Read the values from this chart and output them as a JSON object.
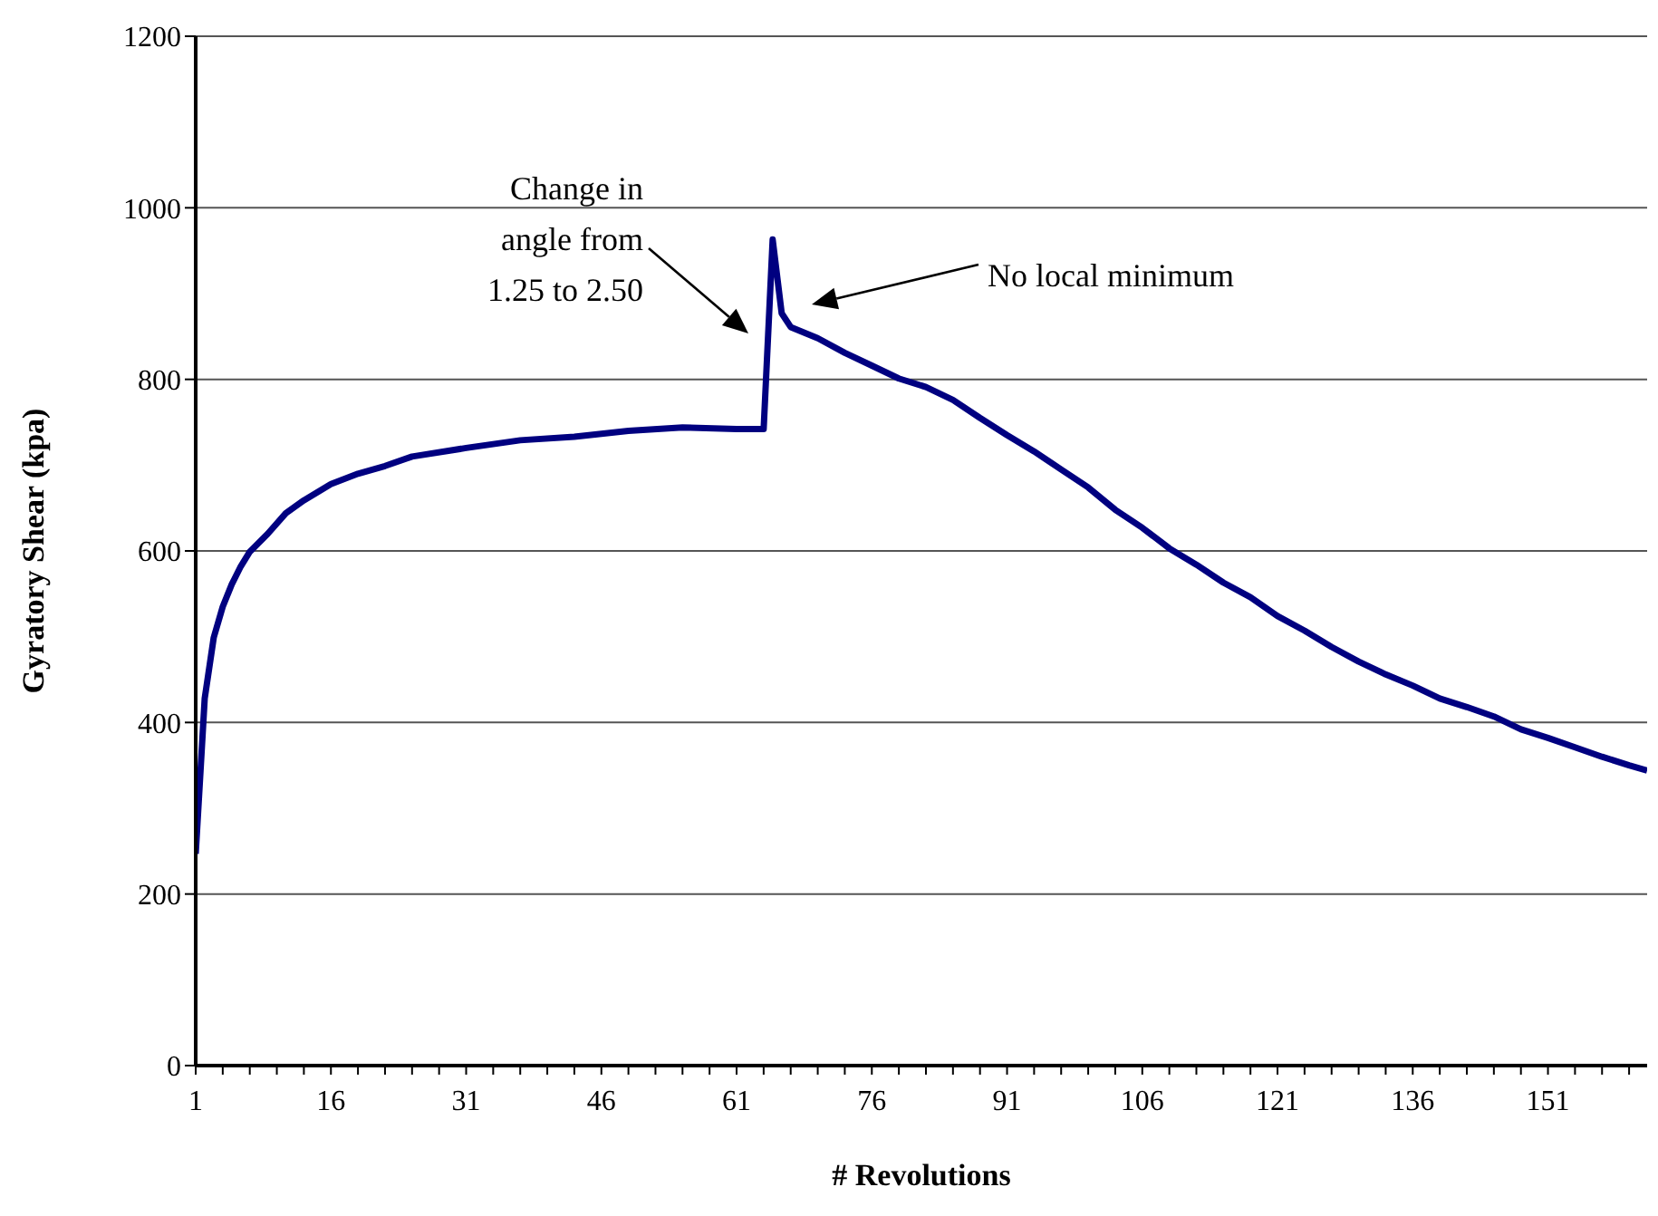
{
  "chart_data": {
    "type": "line",
    "xlabel": "# Revolutions",
    "ylabel": "Gyratory Shear (kpa)",
    "x": [
      1,
      2,
      3,
      4,
      5,
      6,
      7,
      9,
      11,
      13,
      16,
      19,
      22,
      25,
      31,
      37,
      43,
      49,
      55,
      61,
      64,
      65,
      66,
      67,
      70,
      73,
      76,
      79,
      82,
      85,
      88,
      91,
      94,
      97,
      100,
      103,
      106,
      109,
      112,
      115,
      118,
      121,
      124,
      127,
      130,
      133,
      136,
      139,
      142,
      145,
      148,
      151,
      154,
      157,
      160,
      162
    ],
    "series": [
      {
        "color": "#000080",
        "values": [
          247,
          428,
          499,
          535,
          561,
          582,
          599,
          620,
          644,
          659,
          678,
          690,
          699,
          710,
          720,
          729,
          733,
          740,
          744,
          742,
          742,
          963,
          877,
          861,
          848,
          831,
          816,
          801,
          791,
          776,
          755,
          735,
          716,
          695,
          674,
          648,
          627,
          603,
          584,
          563,
          546,
          524,
          507,
          488,
          471,
          456,
          443,
          428,
          418,
          407,
          392,
          382,
          371,
          360,
          350,
          344
        ]
      }
    ],
    "xlim": [
      1,
      162
    ],
    "xticks": [
      1,
      {
        "value": 4,
        "label": null
      },
      {
        "value": 7,
        "label": null
      },
      {
        "value": 10,
        "label": null
      },
      {
        "value": 13,
        "label": null
      },
      16,
      {
        "value": 19,
        "label": null
      },
      {
        "value": 22,
        "label": null
      },
      {
        "value": 25,
        "label": null
      },
      {
        "value": 28,
        "label": null
      },
      31,
      {
        "value": 34,
        "label": null
      },
      {
        "value": 37,
        "label": null
      },
      {
        "value": 40,
        "label": null
      },
      {
        "value": 43,
        "label": null
      },
      46,
      {
        "value": 49,
        "label": null
      },
      {
        "value": 52,
        "label": null
      },
      {
        "value": 55,
        "label": null
      },
      {
        "value": 58,
        "label": null
      },
      61,
      {
        "value": 64,
        "label": null
      },
      {
        "value": 67,
        "label": null
      },
      {
        "value": 70,
        "label": null
      },
      {
        "value": 73,
        "label": null
      },
      76,
      {
        "value": 79,
        "label": null
      },
      {
        "value": 82,
        "label": null
      },
      {
        "value": 85,
        "label": null
      },
      {
        "value": 88,
        "label": null
      },
      91,
      {
        "value": 94,
        "label": null
      },
      {
        "value": 97,
        "label": null
      },
      {
        "value": 100,
        "label": null
      },
      {
        "value": 103,
        "label": null
      },
      106,
      {
        "value": 109,
        "label": null
      },
      {
        "value": 112,
        "label": null
      },
      {
        "value": 115,
        "label": null
      },
      {
        "value": 118,
        "label": null
      },
      121,
      {
        "value": 124,
        "label": null
      },
      {
        "value": 127,
        "label": null
      },
      {
        "value": 130,
        "label": null
      },
      {
        "value": 133,
        "label": null
      },
      136,
      {
        "value": 139,
        "label": null
      },
      {
        "value": 142,
        "label": null
      },
      {
        "value": 145,
        "label": null
      },
      {
        "value": 148,
        "label": null
      },
      151,
      {
        "value": 154,
        "label": null
      },
      {
        "value": 157,
        "label": null
      },
      {
        "value": 160,
        "label": null
      }
    ],
    "ylim": [
      0,
      1200
    ],
    "yticks": [
      0,
      200,
      400,
      600,
      800,
      1000,
      1200
    ],
    "grid": "y",
    "marker": "none",
    "line_style": "solid",
    "annotations": [
      "Change in\nangle from\n1.25 to 2.50",
      "No local minimum"
    ]
  }
}
